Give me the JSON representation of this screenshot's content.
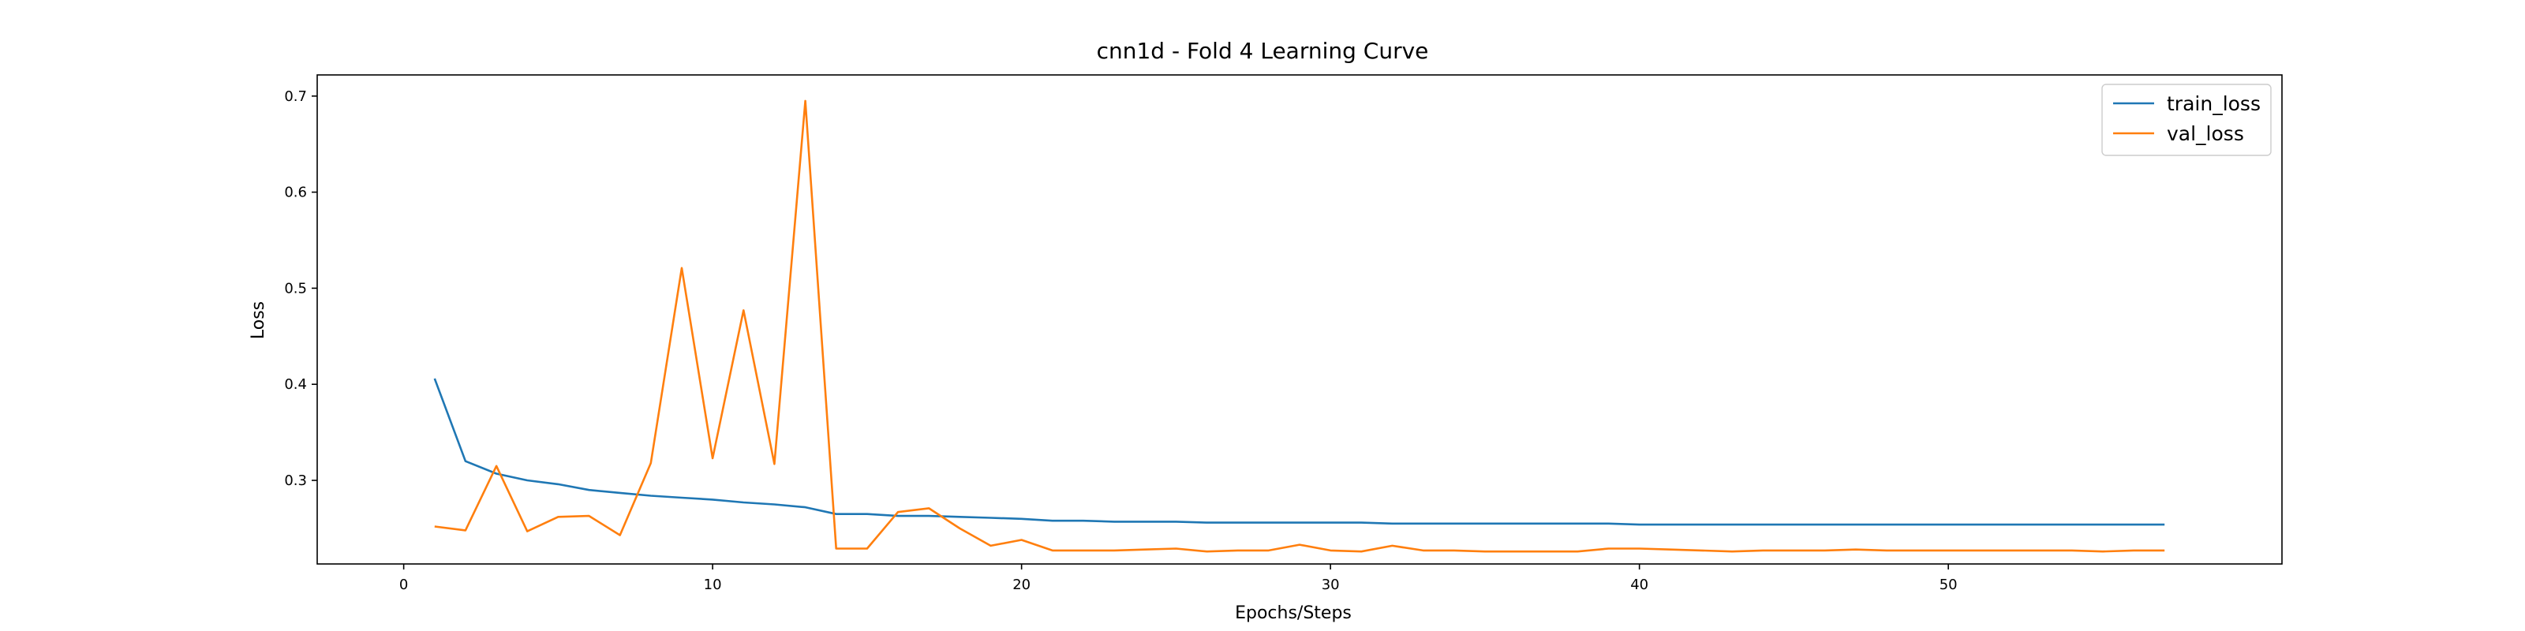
{
  "chart_data": {
    "type": "line",
    "title": "cnn1d - Fold 4 Learning Curve",
    "xlabel": "Epochs/Steps",
    "ylabel": "Loss",
    "xlim": [
      -2.8,
      60.8
    ],
    "ylim": [
      0.213,
      0.722
    ],
    "xticks": [
      0,
      10,
      20,
      30,
      40,
      50
    ],
    "yticks": [
      0.3,
      0.4,
      0.5,
      0.6,
      0.7
    ],
    "grid": false,
    "legend_position": "top-right",
    "x": [
      1,
      2,
      3,
      4,
      5,
      6,
      7,
      8,
      9,
      10,
      11,
      12,
      13,
      14,
      15,
      16,
      17,
      18,
      19,
      20,
      21,
      22,
      23,
      24,
      25,
      26,
      27,
      28,
      29,
      30,
      31,
      32,
      33,
      34,
      35,
      36,
      37,
      38,
      39,
      40,
      41,
      42,
      43,
      44,
      45,
      46,
      47,
      48,
      49,
      50,
      51,
      52,
      53,
      54,
      55,
      56,
      57
    ],
    "series": [
      {
        "name": "train_loss",
        "color": "#1f77b4",
        "values": [
          0.406,
          0.32,
          0.307,
          0.3,
          0.296,
          0.29,
          0.287,
          0.284,
          0.282,
          0.28,
          0.277,
          0.275,
          0.272,
          0.265,
          0.265,
          0.263,
          0.263,
          0.262,
          0.261,
          0.26,
          0.258,
          0.258,
          0.257,
          0.257,
          0.257,
          0.256,
          0.256,
          0.256,
          0.256,
          0.256,
          0.256,
          0.255,
          0.255,
          0.255,
          0.255,
          0.255,
          0.255,
          0.255,
          0.255,
          0.254,
          0.254,
          0.254,
          0.254,
          0.254,
          0.254,
          0.254,
          0.254,
          0.254,
          0.254,
          0.254,
          0.254,
          0.254,
          0.254,
          0.254,
          0.254,
          0.254,
          0.254
        ]
      },
      {
        "name": "val_loss",
        "color": "#ff7f0e",
        "values": [
          0.252,
          0.248,
          0.315,
          0.247,
          0.262,
          0.263,
          0.243,
          0.318,
          0.521,
          0.323,
          0.477,
          0.317,
          0.695,
          0.229,
          0.229,
          0.267,
          0.271,
          0.25,
          0.232,
          0.238,
          0.227,
          0.227,
          0.227,
          0.228,
          0.229,
          0.226,
          0.227,
          0.227,
          0.233,
          0.227,
          0.226,
          0.232,
          0.227,
          0.227,
          0.226,
          0.226,
          0.226,
          0.226,
          0.229,
          0.229,
          0.228,
          0.227,
          0.226,
          0.227,
          0.227,
          0.227,
          0.228,
          0.227,
          0.227,
          0.227,
          0.227,
          0.227,
          0.227,
          0.227,
          0.226,
          0.227,
          0.227
        ]
      }
    ]
  }
}
